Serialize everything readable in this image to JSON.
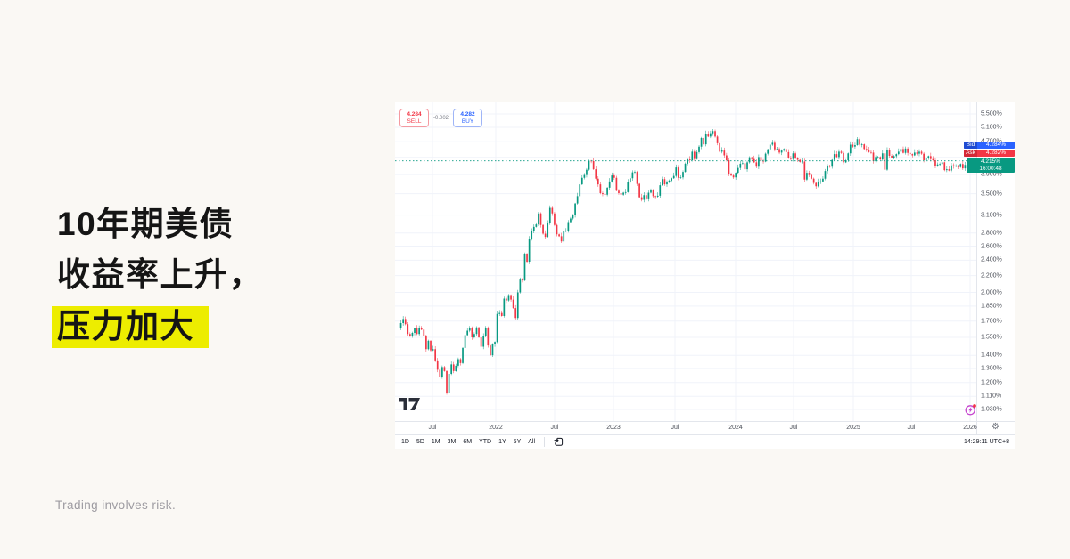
{
  "headline": {
    "lines": [
      "10年期美债",
      "收益率上升，",
      "压力加大"
    ],
    "highlight_color": "#EDED00",
    "text_color": "#151515"
  },
  "disclaimer": "Trading involves risk.",
  "chart": {
    "order_panel": {
      "sell_price": "4.284",
      "sell_label": "SELL",
      "spread": "-0.002",
      "buy_price": "4.282",
      "buy_label": "BUY"
    },
    "quote_labels": {
      "bid_label": "Bid",
      "bid_value": "4.284%",
      "ask_label": "Ask",
      "ask_value": "4.282%",
      "last_value": "4.215%",
      "countdown": "16:00:48"
    },
    "price_axis_ticks": [
      "5.500%",
      "5.100%",
      "4.700%",
      "3.900%",
      "3.500%",
      "3.100%",
      "2.800%",
      "2.600%",
      "2.400%",
      "2.200%",
      "2.000%",
      "1.850%",
      "1.700%",
      "1.550%",
      "1.400%",
      "1.300%",
      "1.200%",
      "1.110%",
      "1.030%"
    ],
    "time_axis_ticks": [
      "Jul",
      "2022",
      "Jul",
      "2023",
      "Jul",
      "2024",
      "Jul",
      "2025",
      "Jul",
      "2026"
    ],
    "toolbar": {
      "ranges": [
        "1D",
        "5D",
        "1M",
        "3M",
        "6M",
        "YTD",
        "1Y",
        "5Y",
        "All"
      ],
      "timestamp": "14:29:11 UTC+8"
    },
    "icons": [
      "tradingview-logo",
      "market-status-icon",
      "settings-gear-icon",
      "go-to-date-icon"
    ],
    "colors": {
      "up": "#089981",
      "down": "#F23645",
      "bid_bg": "#2962FF",
      "ask_bg": "#F23645",
      "last_bg": "#089981",
      "grid": "#F0F3FA",
      "axis_line": "#E3E6EC",
      "axis_text": "#4A4E57"
    }
  },
  "chart_data": {
    "type": "candlestick",
    "yscale": "log",
    "ylim": [
      1.03,
      5.5
    ],
    "y_ticks": [
      5.5,
      5.1,
      4.7,
      4.3,
      3.9,
      3.5,
      3.1,
      2.8,
      2.6,
      2.4,
      2.2,
      2.0,
      1.85,
      1.7,
      1.55,
      1.4,
      1.3,
      1.2,
      1.11,
      1.03
    ],
    "x_tick_labels": [
      "Jul",
      "2022",
      "Jul",
      "2023",
      "Jul",
      "2024",
      "Jul",
      "2025",
      "Jul",
      "2026"
    ],
    "last": 4.215,
    "closes": [
      1.63,
      1.68,
      1.72,
      1.67,
      1.58,
      1.56,
      1.59,
      1.63,
      1.58,
      1.63,
      1.62,
      1.56,
      1.45,
      1.52,
      1.44,
      1.45,
      1.36,
      1.29,
      1.24,
      1.31,
      1.28,
      1.13,
      1.26,
      1.33,
      1.28,
      1.32,
      1.37,
      1.34,
      1.46,
      1.57,
      1.61,
      1.63,
      1.55,
      1.58,
      1.64,
      1.55,
      1.47,
      1.56,
      1.63,
      1.48,
      1.4,
      1.49,
      1.51,
      1.77,
      1.78,
      1.75,
      1.93,
      1.91,
      1.97,
      1.92,
      1.83,
      1.73,
      2.0,
      2.15,
      2.14,
      2.49,
      2.38,
      2.7,
      2.83,
      2.9,
      2.94,
      3.13,
      2.93,
      2.79,
      2.74,
      2.96,
      3.23,
      3.13,
      2.93,
      2.78,
      2.75,
      2.67,
      2.83,
      2.84,
      2.98,
      3.04,
      3.1,
      3.31,
      3.45,
      3.69,
      3.83,
      3.89,
      4.01,
      4.22,
      4.21,
      4.02,
      3.81,
      3.69,
      3.51,
      3.49,
      3.48,
      3.62,
      3.75,
      3.88,
      3.83,
      3.56,
      3.51,
      3.48,
      3.52,
      3.53,
      3.74,
      3.82,
      3.95,
      3.96,
      3.7,
      3.43,
      3.38,
      3.47,
      3.39,
      3.52,
      3.57,
      3.45,
      3.44,
      3.46,
      3.67,
      3.8,
      3.69,
      3.74,
      3.77,
      3.82,
      3.87,
      4.06,
      3.83,
      3.84,
      3.96,
      4.15,
      4.25,
      4.23,
      4.44,
      4.26,
      4.43,
      4.57,
      4.8,
      4.63,
      4.91,
      4.84,
      4.93,
      4.99,
      4.84,
      4.66,
      4.44,
      4.47,
      4.35,
      4.23,
      3.91,
      3.88,
      3.84,
      3.94,
      4.05,
      4.15,
      4.16,
      4.02,
      4.18,
      4.3,
      4.26,
      4.18,
      4.08,
      4.31,
      4.22,
      4.2,
      4.39,
      4.5,
      4.62,
      4.67,
      4.5,
      4.51,
      4.42,
      4.47,
      4.51,
      4.43,
      4.28,
      4.26,
      4.4,
      4.28,
      4.24,
      4.19,
      4.2,
      3.79,
      3.94,
      3.89,
      3.81,
      3.72,
      3.65,
      3.74,
      3.75,
      3.81,
      3.98,
      4.1,
      4.08,
      4.24,
      4.38,
      4.31,
      4.44,
      4.41,
      4.18,
      4.23,
      4.4,
      4.62,
      4.57,
      4.61,
      4.77,
      4.62,
      4.63,
      4.51,
      4.49,
      4.43,
      4.42,
      4.21,
      4.31,
      4.31,
      4.25,
      4.4,
      4.01,
      4.49,
      4.34,
      4.29,
      4.33,
      4.38,
      4.44,
      4.51,
      4.41,
      4.52,
      4.41,
      4.38,
      4.35,
      4.42,
      4.39,
      4.44,
      4.39,
      4.23,
      4.28,
      4.33,
      4.26,
      4.23,
      4.09,
      4.13,
      4.14,
      4.18,
      4.0,
      4.02,
      3.99,
      4.11,
      4.09,
      4.1,
      4.07,
      4.14,
      4.04,
      4.12,
      4.215
    ]
  }
}
